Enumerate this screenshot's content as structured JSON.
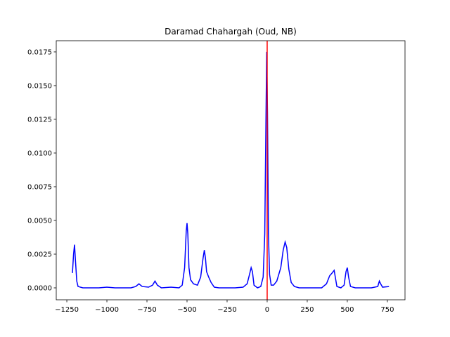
{
  "chart_data": {
    "type": "line",
    "title": "Daramad Chahargah (Oud, NB)",
    "x": [
      -1215,
      -1208,
      -1202,
      -1196,
      -1188,
      -1180,
      -1150,
      -1050,
      -1000,
      -950,
      -850,
      -820,
      -800,
      -780,
      -740,
      -715,
      -700,
      -685,
      -660,
      -600,
      -550,
      -530,
      -515,
      -505,
      -500,
      -495,
      -488,
      -478,
      -460,
      -435,
      -415,
      -400,
      -392,
      -385,
      -378,
      -365,
      -350,
      -330,
      -300,
      -200,
      -150,
      -125,
      -110,
      -100,
      -92,
      -82,
      -60,
      -40,
      -25,
      -15,
      -8,
      -3,
      2,
      8,
      15,
      25,
      40,
      60,
      85,
      100,
      112,
      122,
      135,
      150,
      170,
      200,
      280,
      340,
      370,
      390,
      405,
      418,
      425,
      435,
      460,
      480,
      492,
      500,
      508,
      520,
      550,
      650,
      690,
      700,
      708,
      720,
      760
    ],
    "series": [
      {
        "color": "#0000ff",
        "values": [
          0.0011,
          0.0025,
          0.0032,
          0.002,
          0.0005,
          0.0001,
          0,
          0,
          5e-05,
          0,
          0,
          0.0001,
          0.0003,
          0.0001,
          5e-05,
          0.0002,
          0.0005,
          0.0002,
          0,
          5e-05,
          0,
          0.0002,
          0.0015,
          0.0042,
          0.0048,
          0.004,
          0.0015,
          0.0006,
          0.0003,
          0.0002,
          0.0008,
          0.0022,
          0.0028,
          0.0022,
          0.0012,
          0.0008,
          0.0004,
          5e-05,
          0,
          0,
          5e-05,
          0.0003,
          0.001,
          0.0015,
          0.0012,
          0.0002,
          0,
          0.0001,
          0.0008,
          0.004,
          0.012,
          0.0175,
          0.013,
          0.004,
          0.001,
          0.0002,
          0.0002,
          0.0005,
          0.0015,
          0.0028,
          0.0034,
          0.003,
          0.0014,
          0.0004,
          0.0001,
          0,
          0,
          0,
          0.0003,
          0.0009,
          0.0011,
          0.0013,
          0.0008,
          0.0001,
          0,
          0.0002,
          0.0012,
          0.0015,
          0.0008,
          0.0001,
          0,
          0,
          0.0001,
          0.0005,
          0.0003,
          5e-05,
          0.0001
        ]
      }
    ],
    "vline": {
      "x": 0,
      "color": "#ff0000"
    },
    "xlim": [
      -1316,
      860
    ],
    "ylim": [
      -0.000885,
      0.01833
    ],
    "xticks": [
      {
        "value": -1250,
        "label": "−1250"
      },
      {
        "value": -1000,
        "label": "−1000"
      },
      {
        "value": -750,
        "label": "−750"
      },
      {
        "value": -500,
        "label": "−500"
      },
      {
        "value": -250,
        "label": "−250"
      },
      0,
      250,
      500,
      750
    ],
    "yticks": [
      {
        "value": 0,
        "label": "0.0000"
      },
      0.0025,
      {
        "value": 0.005,
        "label": "0.0050"
      },
      0.0075,
      {
        "value": 0.01,
        "label": "0.0100"
      },
      0.0125,
      {
        "value": 0.015,
        "label": "0.0150"
      },
      0.0175
    ]
  }
}
